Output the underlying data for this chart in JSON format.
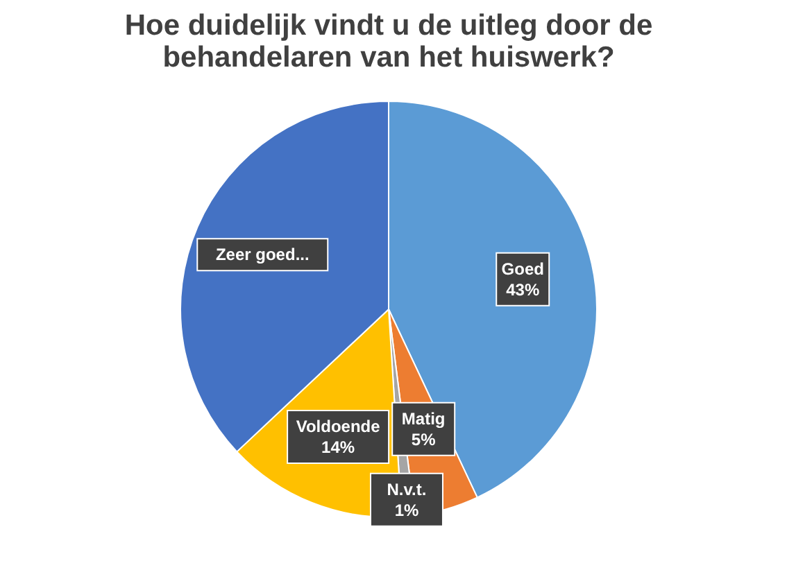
{
  "chart_data": {
    "type": "pie",
    "title": "Hoe duidelijk vindt u de uitleg door de behandelaren van het huiswerk?",
    "categories": [
      "Goed",
      "Matig",
      "N.v.t.",
      "Voldoende",
      "Zeer goed..."
    ],
    "values": [
      43,
      5,
      1,
      14,
      37
    ],
    "colors": [
      "#5b9bd5",
      "#ed7d31",
      "#a5a5a5",
      "#ffc000",
      "#4472c4"
    ],
    "value_labels": [
      "43%",
      "5%",
      "1%",
      "14%",
      null
    ],
    "legend": false
  }
}
